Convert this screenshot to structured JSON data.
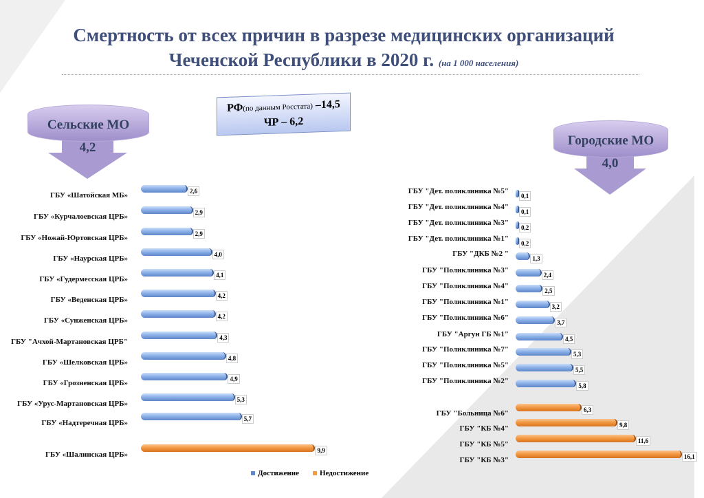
{
  "title_line1": "Смертность от всех причин в разрезе медицинских организаций",
  "title_line2": "Чеченской Республики в 2020 г.",
  "title_note": "(на 1 000 населения)",
  "rf_box": {
    "rf_label": "РФ",
    "rf_note": "(по данным Росстата)",
    "rf_value": "–14,5",
    "chr_label": "ЧР – 6,2"
  },
  "rural": {
    "label": "Сельские МО",
    "value": "4,2"
  },
  "urban": {
    "label": "Городские МО",
    "value": "4,0"
  },
  "colors": {
    "achieved": "#8fb3ea",
    "not_achieved": "#f39a44"
  },
  "chart_data": [
    {
      "type": "bar",
      "orientation": "horizontal",
      "title": "Сельские МО",
      "categories": [
        "ГБУ «Шатойская МБ»",
        "ГБУ «Курчалоевская ЦРБ»",
        "ГБУ «Ножай-Юртовская ЦРБ»",
        "ГБУ «Наурская ЦРБ»",
        "ГБУ «Гудермесская ЦРБ»",
        "ГБУ «Веденская ЦРБ»",
        "ГБУ «Сунженская ЦРБ»",
        "ГБУ \"Ачхой-Мартановская ЦРБ\"",
        "ГБУ «Шелковская ЦРБ»",
        "ГБУ «Грозненская ЦРБ»",
        "ГБУ «Урус-Мартановская ЦРБ»",
        "ГБУ «Надтеречная ЦРБ»",
        "ГБУ «Шалинская ЦРБ»"
      ],
      "values": [
        2.6,
        2.9,
        2.9,
        4.0,
        4.1,
        4.2,
        4.2,
        4.3,
        4.8,
        4.9,
        5.3,
        5.7,
        9.9
      ],
      "labels": [
        "2,6",
        "2,9",
        "2,9",
        "4,0",
        "4,1",
        "4,2",
        "4,2",
        "4,3",
        "4,8",
        "4,9",
        "5,3",
        "5,7",
        "9,9"
      ],
      "status": [
        "a",
        "a",
        "a",
        "a",
        "a",
        "a",
        "a",
        "a",
        "a",
        "a",
        "a",
        "a",
        "n"
      ]
    },
    {
      "type": "bar",
      "orientation": "horizontal",
      "title": "Городские МО",
      "categories": [
        "ГБУ \"Дет. поликлиника №5\"",
        "ГБУ \"Дет. поликлиника №4\"",
        "ГБУ \"Дет. поликлиника №3\"",
        "ГБУ \"Дет. поликлиника №1\"",
        "ГБУ \"ДКБ №2 \"",
        "ГБУ \"Поликлиника №3\"",
        "ГБУ \"Поликлиника №4\"",
        "ГБУ \"Поликлиника №1\"",
        "ГБУ \"Поликлиника №6\"",
        "ГБУ \"Аргун ГБ №1\"",
        "ГБУ \"Поликлиника №7\"",
        "ГБУ \"Поликлиника №5\"",
        "ГБУ \"Поликлиника №2\"",
        "ГБУ \"Больница  №6\"",
        "ГБУ \"КБ №4\"",
        "ГБУ \"КБ №5\"",
        "ГБУ \"КБ №3\""
      ],
      "values": [
        0.1,
        0.1,
        0.2,
        0.2,
        1.3,
        2.4,
        2.5,
        3.2,
        3.7,
        4.5,
        5.3,
        5.5,
        5.8,
        6.3,
        9.8,
        11.6,
        16.1
      ],
      "labels": [
        "0,1",
        "0,1",
        "0,2",
        "0,2",
        "1,3",
        "2,4",
        "2,5",
        "3,2",
        "3,7",
        "4,5",
        "5,3",
        "5,5",
        "5,8",
        "6,3",
        "9,8",
        "11,6",
        "16,1"
      ],
      "status": [
        "a",
        "a",
        "a",
        "a",
        "a",
        "a",
        "a",
        "a",
        "a",
        "a",
        "a",
        "a",
        "a",
        "n",
        "n",
        "n",
        "n"
      ]
    }
  ],
  "legend": {
    "achieved": "Достижение",
    "not_achieved": "Недостижение"
  }
}
